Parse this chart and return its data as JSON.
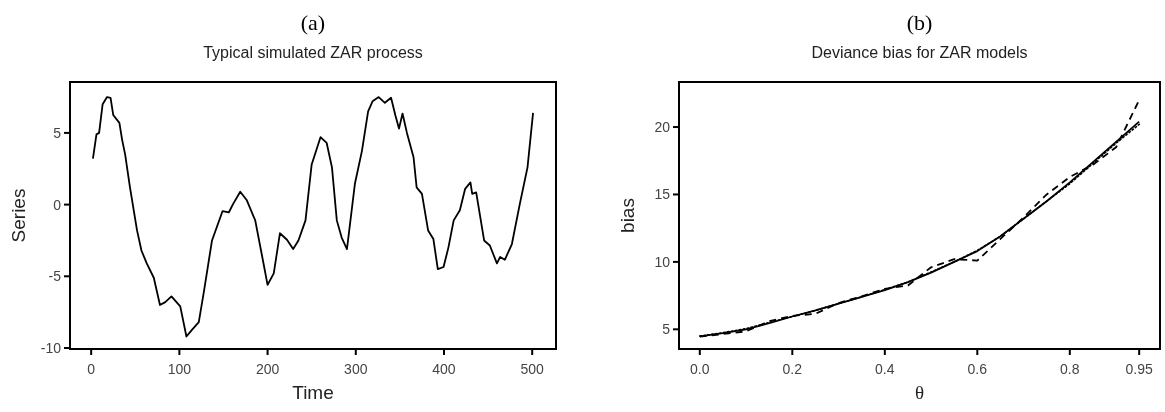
{
  "chart_data": [
    {
      "type": "line",
      "title": "(a)",
      "subtitle": "Typical simulated ZAR process",
      "xlabel": "Time",
      "ylabel": "Series",
      "x": [
        2,
        6,
        9,
        13,
        18,
        22,
        25,
        32,
        35,
        38.5,
        44,
        52,
        57,
        63,
        71,
        78,
        84,
        91,
        101,
        108,
        114,
        122,
        128,
        137,
        149,
        156,
        161,
        169,
        176.5,
        186,
        193.5,
        200,
        207,
        214,
        222,
        229,
        235,
        243,
        250,
        260,
        267,
        273,
        278.5,
        284,
        290,
        299,
        307,
        314,
        319,
        326,
        333,
        340,
        345,
        349,
        353,
        358,
        365.5,
        369,
        375,
        382,
        388,
        393,
        399.5,
        405,
        411,
        418,
        424,
        430,
        432,
        436.5,
        445.5,
        452,
        460,
        463.7,
        469,
        477,
        486,
        494.7,
        501
      ],
      "values": [
        3.2,
        4.9,
        5.0,
        7.0,
        7.5,
        7.45,
        6.25,
        5.7,
        4.55,
        3.5,
        1.2,
        -1.8,
        -3.2,
        -4.1,
        -5.1,
        -7.0,
        -6.8,
        -6.4,
        -7.1,
        -9.2,
        -8.75,
        -8.2,
        -6.0,
        -2.5,
        -0.45,
        -0.55,
        0.05,
        0.9,
        0.3,
        -1.1,
        -3.5,
        -5.6,
        -4.8,
        -2.0,
        -2.45,
        -3.1,
        -2.5,
        -1.1,
        2.8,
        4.7,
        4.3,
        2.6,
        -1.1,
        -2.3,
        -3.1,
        1.45,
        3.75,
        6.5,
        7.2,
        7.5,
        7.1,
        7.45,
        6.2,
        5.3,
        6.35,
        5.0,
        3.3,
        1.2,
        0.75,
        -1.8,
        -2.4,
        -4.5,
        -4.35,
        -3.0,
        -1.1,
        -0.4,
        1.1,
        1.55,
        0.75,
        0.85,
        -2.5,
        -2.85,
        -4.1,
        -3.65,
        -3.85,
        -2.75,
        0.05,
        2.6,
        6.4
      ],
      "color": "#000000",
      "line_style": "solid",
      "xlim": [
        -24,
        527
      ],
      "ylim": [
        -10.07,
        8.55
      ],
      "xticks": [
        0,
        100,
        200,
        300,
        400,
        500
      ],
      "yticks": [
        -10,
        -5,
        0,
        5
      ],
      "grid": false
    },
    {
      "type": "line",
      "title": "(b)",
      "subtitle": "Deviance bias for ZAR models",
      "xlabel": "θ",
      "ylabel": "bias",
      "x": [
        0,
        0.05,
        0.1,
        0.15,
        0.2,
        0.25,
        0.3,
        0.35,
        0.4,
        0.45,
        0.5,
        0.55,
        0.6,
        0.65,
        0.7,
        0.75,
        0.8,
        0.85,
        0.9,
        0.95
      ],
      "series": [
        {
          "color": "#000000",
          "line_style": "solid",
          "values": [
            4.48,
            4.72,
            5.0,
            5.45,
            5.95,
            6.4,
            6.9,
            7.4,
            7.9,
            8.5,
            9.2,
            10.0,
            10.8,
            11.9,
            13.2,
            14.5,
            15.9,
            17.4,
            18.9,
            20.4
          ]
        },
        {
          "color": "#000000",
          "line_style": "dashed",
          "values": [
            4.45,
            4.65,
            4.85,
            5.6,
            6.0,
            6.15,
            6.95,
            7.45,
            8.0,
            8.25,
            9.6,
            10.2,
            10.1,
            11.7,
            13.3,
            15.0,
            16.3,
            17.2,
            18.5,
            22.0
          ]
        },
        {
          "color": "#000000",
          "line_style": "dotted",
          "values": [
            4.5,
            4.75,
            5.05,
            5.5,
            5.95,
            6.4,
            6.9,
            7.4,
            7.95,
            8.5,
            9.25,
            10.0,
            10.85,
            11.9,
            13.2,
            14.5,
            15.8,
            17.3,
            18.8,
            20.2
          ]
        }
      ],
      "xlim": [
        -0.045,
        0.995
      ],
      "ylim": [
        3.54,
        23.34
      ],
      "xticks": [
        {
          "value": 0,
          "label": "0.0"
        },
        0.2,
        0.4,
        0.6,
        0.8,
        0.95
      ],
      "yticks": [
        5,
        10,
        15,
        20
      ],
      "grid": false
    }
  ]
}
